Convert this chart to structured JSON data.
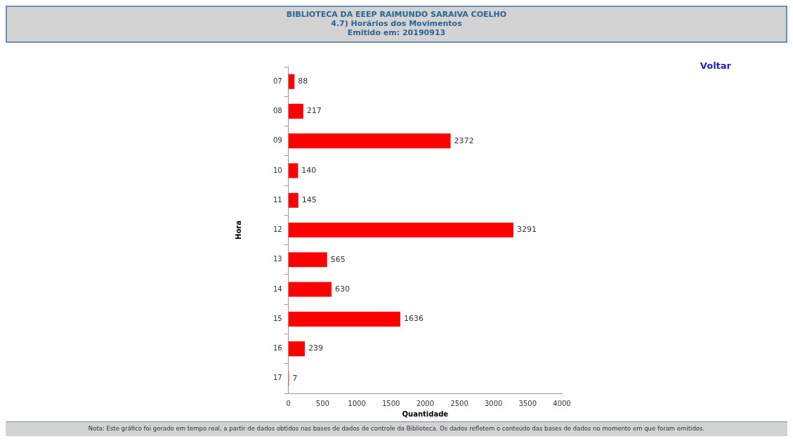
{
  "chart_data": {
    "type": "bar",
    "orientation": "horizontal",
    "title": "BIBLIOTECA DA EEEP RAIMUNDO SARAIVA COELHO",
    "subtitle": "4.7) Horários dos Movimentos",
    "annotations": [
      "Emitido em: 20190913",
      "Voltar",
      "Nota: Este gráfico foi gerado em tempo real, a partir de dados obtidos nas bases de dados de controle da Biblioteca. Os dados refletem o conteúdo das bases de dados no momento em que foram emitidos."
    ],
    "xlabel": "Quantidade",
    "ylabel": "Hora",
    "categories": [
      "07",
      "08",
      "09",
      "10",
      "11",
      "12",
      "13",
      "14",
      "15",
      "16",
      "17"
    ],
    "values": [
      88,
      217,
      2372,
      140,
      145,
      3291,
      565,
      630,
      1636,
      239,
      7
    ],
    "color": "#ff0000",
    "xlim": [
      0,
      4000
    ],
    "xticks": [
      0,
      500,
      1000,
      1500,
      2000,
      2500,
      3000,
      3500,
      4000
    ],
    "data_labels": true,
    "grid": false,
    "legend": false
  }
}
